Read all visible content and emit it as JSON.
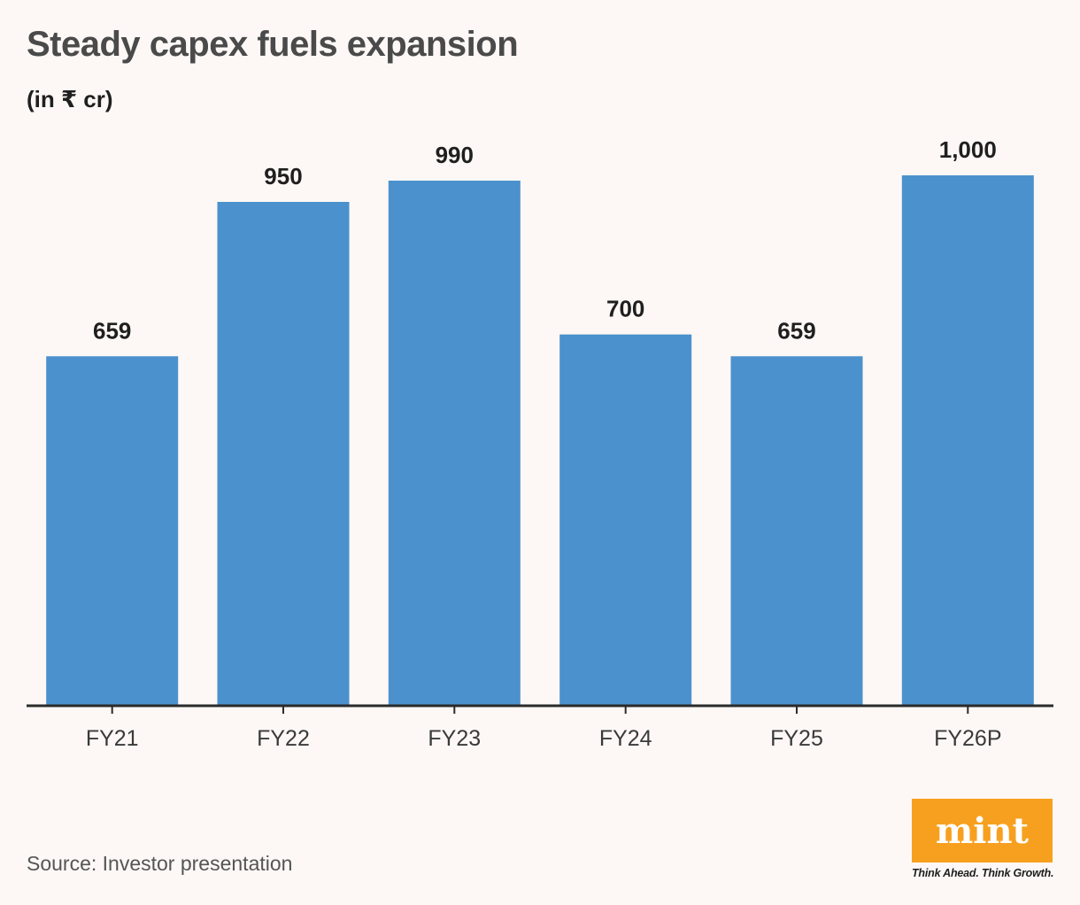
{
  "header": {
    "title": "Steady capex fuels expansion",
    "subtitle": "(in ₹ cr)"
  },
  "chart_data": {
    "type": "bar",
    "title": "Steady capex fuels expansion",
    "subtitle": "(in ₹ cr)",
    "xlabel": "",
    "ylabel": "",
    "categories": [
      "FY21",
      "FY22",
      "FY23",
      "FY24",
      "FY25",
      "FY26P"
    ],
    "values": [
      659,
      950,
      990,
      700,
      659,
      1000
    ],
    "value_labels": [
      "659",
      "950",
      "990",
      "700",
      "659",
      "1,000"
    ],
    "ylim": [
      0,
      1000
    ],
    "grid": false,
    "legend": "none",
    "bar_color": "#4b91cd",
    "axis_color": "#2b2b2b"
  },
  "footer": {
    "source": "Source: Investor presentation",
    "brand": "mint",
    "tagline": "Think Ahead. Think Growth.",
    "brand_color": "#f7a01f"
  }
}
